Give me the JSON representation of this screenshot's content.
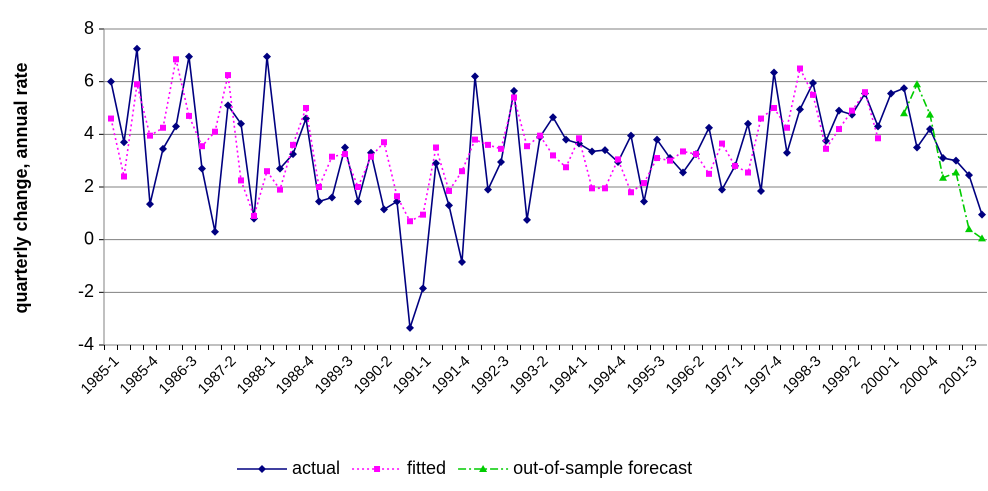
{
  "chart_data": {
    "type": "line",
    "ylabel": "quarterly change, annual rate",
    "categories": [
      "1985-1",
      null,
      null,
      "1985-4",
      null,
      null,
      "1986-3",
      null,
      null,
      "1987-2",
      null,
      null,
      "1988-1",
      null,
      null,
      "1988-4",
      null,
      null,
      "1989-3",
      null,
      null,
      "1990-2",
      null,
      null,
      "1991-1",
      null,
      null,
      "1991-4",
      null,
      null,
      "1992-3",
      null,
      null,
      "1993-2",
      null,
      null,
      "1994-1",
      null,
      null,
      "1994-4",
      null,
      null,
      "1995-3",
      null,
      null,
      "1996-2",
      null,
      null,
      "1997-1",
      null,
      null,
      "1997-4",
      null,
      null,
      "1998-3",
      null,
      null,
      "1999-2",
      null,
      null,
      "2000-1",
      null,
      null,
      "2000-4",
      null,
      null,
      "2001-3",
      null
    ],
    "series": [
      {
        "name": "actual",
        "color": "#000080",
        "marker": "diamond",
        "dash": "solid",
        "values": [
          6.0,
          3.7,
          7.25,
          1.35,
          3.45,
          4.3,
          6.95,
          2.7,
          0.3,
          5.1,
          4.4,
          0.8,
          6.95,
          2.7,
          3.25,
          4.6,
          1.45,
          1.6,
          3.5,
          1.45,
          3.3,
          1.15,
          1.45,
          -3.35,
          -1.85,
          2.9,
          1.3,
          -0.85,
          6.2,
          1.9,
          2.95,
          5.65,
          0.75,
          3.9,
          4.65,
          3.8,
          3.65,
          3.35,
          3.4,
          2.95,
          3.95,
          1.45,
          3.8,
          3.1,
          2.55,
          3.25,
          4.25,
          1.9,
          2.8,
          4.4,
          1.85,
          6.35,
          3.3,
          4.95,
          5.95,
          3.75,
          4.9,
          4.75,
          5.55,
          4.3,
          5.55,
          5.75,
          3.5,
          4.2,
          3.1,
          3.0,
          2.45,
          0.95
        ]
      },
      {
        "name": "fitted",
        "color": "#ff00ff",
        "marker": "square",
        "dash": "dotted",
        "values": [
          4.6,
          2.4,
          5.9,
          3.95,
          4.25,
          6.85,
          4.7,
          3.55,
          4.1,
          6.25,
          2.25,
          0.9,
          2.6,
          1.9,
          3.6,
          5.0,
          2.0,
          3.15,
          3.25,
          2.0,
          3.15,
          3.7,
          1.65,
          0.7,
          0.95,
          3.5,
          1.85,
          2.6,
          3.8,
          3.6,
          3.45,
          5.4,
          3.55,
          3.95,
          3.2,
          2.75,
          3.85,
          1.95,
          1.95,
          3.05,
          1.8,
          2.15,
          3.1,
          3.0,
          3.35,
          3.25,
          2.5,
          3.65,
          2.8,
          2.55,
          4.6,
          5.0,
          4.25,
          6.5,
          5.5,
          3.45,
          4.2,
          4.9,
          5.6,
          3.85,
          null,
          null,
          null,
          null,
          null,
          null,
          null,
          null
        ]
      },
      {
        "name": "out-of-sample forecast",
        "color": "#00cc00",
        "marker": "triangle",
        "dash": "dashdot",
        "values": [
          null,
          null,
          null,
          null,
          null,
          null,
          null,
          null,
          null,
          null,
          null,
          null,
          null,
          null,
          null,
          null,
          null,
          null,
          null,
          null,
          null,
          null,
          null,
          null,
          null,
          null,
          null,
          null,
          null,
          null,
          null,
          null,
          null,
          null,
          null,
          null,
          null,
          null,
          null,
          null,
          null,
          null,
          null,
          null,
          null,
          null,
          null,
          null,
          null,
          null,
          null,
          null,
          null,
          null,
          null,
          null,
          null,
          null,
          null,
          null,
          null,
          4.8,
          5.9,
          4.75,
          2.35,
          2.55,
          0.4,
          0.05
        ]
      }
    ],
    "ylim": [
      -4,
      8
    ],
    "yticks": [
      -4,
      -2,
      0,
      2,
      4,
      6,
      8
    ],
    "grid": true,
    "legend": "bottom"
  }
}
